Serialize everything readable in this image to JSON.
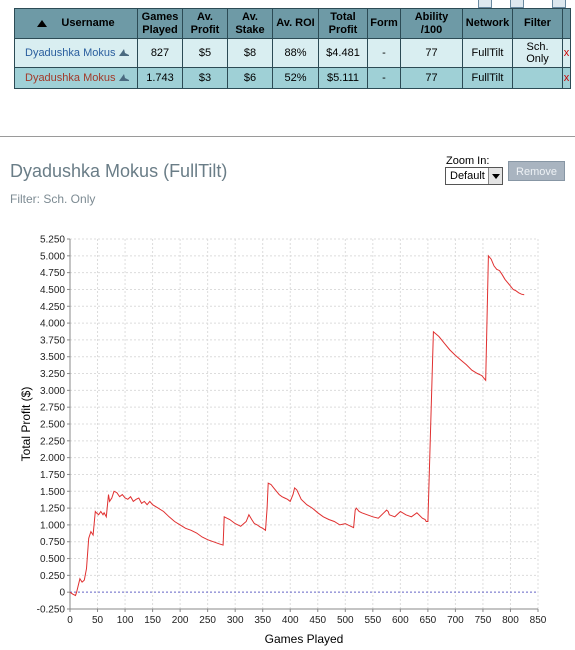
{
  "table": {
    "headers": [
      {
        "lines": [
          "Username"
        ]
      },
      {
        "lines": [
          "Games",
          "Played"
        ]
      },
      {
        "lines": [
          "Av.",
          "Profit"
        ]
      },
      {
        "lines": [
          "Av.",
          "Stake"
        ]
      },
      {
        "lines": [
          "Av. ROI"
        ]
      },
      {
        "lines": [
          "Total",
          "Profit"
        ]
      },
      {
        "lines": [
          "Form"
        ]
      },
      {
        "lines": [
          "Ability /100"
        ]
      },
      {
        "lines": [
          "Network"
        ]
      },
      {
        "lines": [
          "Filter"
        ]
      }
    ],
    "rows": [
      {
        "username": "Dyadushka Mokus",
        "games": "827",
        "av_profit": "$5",
        "av_stake": "$8",
        "roi": "88%",
        "total_profit": "$4.481",
        "form": "-",
        "ability": "77",
        "network": "FullTilt",
        "filter": [
          "Sch.",
          "Only"
        ],
        "remove": "x"
      },
      {
        "username": "Dyadushka Mokus",
        "games": "1.743",
        "av_profit": "$3",
        "av_stake": "$6",
        "roi": "52%",
        "total_profit": "$5.111",
        "form": "-",
        "ability": "77",
        "network": "FullTilt",
        "filter": [
          "",
          ""
        ],
        "remove": "x"
      }
    ]
  },
  "player_title": "Dyadushka Mokus (FullTilt)",
  "filter_text": "Filter: Sch. Only",
  "zoom": {
    "label": "Zoom In:",
    "selected": "Default"
  },
  "remove_label": "Remove",
  "colors": {
    "line": "#e03030",
    "header": "#6e9aa6",
    "row1": "#d9eef1",
    "row2": "#9fd0d6"
  },
  "chart_data": {
    "type": "line",
    "xlabel": "Games Played",
    "ylabel": "Total Profit ($)",
    "xlim": [
      0,
      850
    ],
    "ylim": [
      -0.25,
      5.25
    ],
    "x_ticks": [
      0,
      50,
      100,
      150,
      200,
      250,
      300,
      350,
      400,
      450,
      500,
      550,
      600,
      650,
      700,
      750,
      800,
      850
    ],
    "y_ticks": [
      [
        "5.250",
        5.25
      ],
      [
        "5.000",
        5.0
      ],
      [
        "4.750",
        4.75
      ],
      [
        "4.500",
        4.5
      ],
      [
        "4.250",
        4.25
      ],
      [
        "4.000",
        4.0
      ],
      [
        "3.750",
        3.75
      ],
      [
        "3.500",
        3.5
      ],
      [
        "3.250",
        3.25
      ],
      [
        "3.000",
        3.0
      ],
      [
        "2.750",
        2.75
      ],
      [
        "2.500",
        2.5
      ],
      [
        "2.250",
        2.25
      ],
      [
        "2.000",
        2.0
      ],
      [
        "1.750",
        1.75
      ],
      [
        "1.500",
        1.5
      ],
      [
        "1.250",
        1.25
      ],
      [
        "1.000",
        1.0
      ],
      [
        "0.750",
        0.75
      ],
      [
        "0.500",
        0.5
      ],
      [
        "0.250",
        0.25
      ],
      [
        "0",
        0
      ],
      [
        "-0.250",
        -0.25
      ]
    ],
    "grid": true,
    "series": [
      {
        "x": [
          0,
          5,
          10,
          12,
          18,
          22,
          26,
          30,
          34,
          38,
          42,
          46,
          48,
          52,
          56,
          60,
          62,
          66,
          70,
          72,
          76,
          80,
          85,
          90,
          95,
          100,
          105,
          110,
          115,
          120,
          125,
          130,
          135,
          140,
          145,
          150,
          160,
          170,
          180,
          190,
          200,
          210,
          220,
          230,
          240,
          250,
          260,
          270,
          278,
          280,
          285,
          290,
          300,
          310,
          320,
          325,
          330,
          335,
          340,
          345,
          350,
          355,
          358,
          360,
          365,
          370,
          375,
          380,
          385,
          390,
          395,
          400,
          405,
          408,
          412,
          416,
          420,
          430,
          440,
          450,
          460,
          470,
          480,
          490,
          500,
          510,
          515,
          518,
          520,
          525,
          530,
          540,
          550,
          560,
          570,
          575,
          578,
          580,
          590,
          600,
          610,
          620,
          630,
          640,
          645,
          647,
          650,
          660,
          670,
          680,
          690,
          700,
          710,
          720,
          730,
          740,
          748,
          752,
          755,
          760,
          765,
          770,
          775,
          780,
          785,
          790,
          795,
          800,
          805,
          810,
          815,
          820,
          825
        ],
        "y": [
          0.0,
          -0.03,
          -0.05,
          0.0,
          0.2,
          0.15,
          0.18,
          0.35,
          0.8,
          0.9,
          0.85,
          1.2,
          1.18,
          1.15,
          1.2,
          1.15,
          1.18,
          1.12,
          1.45,
          1.35,
          1.4,
          1.5,
          1.48,
          1.42,
          1.45,
          1.4,
          1.38,
          1.42,
          1.35,
          1.38,
          1.4,
          1.32,
          1.35,
          1.3,
          1.35,
          1.3,
          1.25,
          1.2,
          1.12,
          1.05,
          1.0,
          0.95,
          0.92,
          0.88,
          0.82,
          0.78,
          0.75,
          0.72,
          0.7,
          1.12,
          1.1,
          1.08,
          1.02,
          0.98,
          1.05,
          1.15,
          1.08,
          1.02,
          1.0,
          0.97,
          0.95,
          0.92,
          1.25,
          1.62,
          1.6,
          1.55,
          1.5,
          1.45,
          1.42,
          1.4,
          1.38,
          1.35,
          1.45,
          1.55,
          1.52,
          1.45,
          1.38,
          1.3,
          1.25,
          1.18,
          1.12,
          1.08,
          1.05,
          1.0,
          1.02,
          0.98,
          0.96,
          1.22,
          1.25,
          1.2,
          1.18,
          1.15,
          1.12,
          1.1,
          1.18,
          1.22,
          1.2,
          1.15,
          1.12,
          1.2,
          1.15,
          1.12,
          1.18,
          1.1,
          1.08,
          1.05,
          1.05,
          3.87,
          3.8,
          3.7,
          3.6,
          3.52,
          3.45,
          3.38,
          3.3,
          3.25,
          3.22,
          3.18,
          3.15,
          5.0,
          4.95,
          4.85,
          4.8,
          4.78,
          4.72,
          4.65,
          4.6,
          4.55,
          4.5,
          4.48,
          4.45,
          4.43,
          4.42
        ]
      }
    ]
  }
}
